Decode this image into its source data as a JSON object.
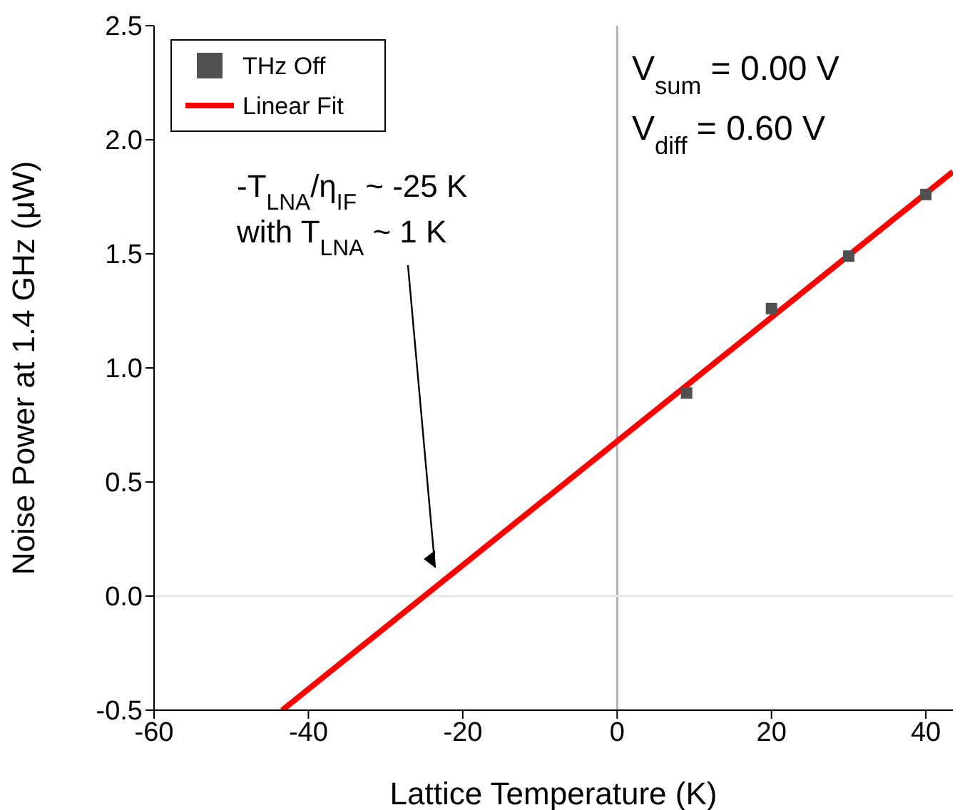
{
  "chart_data": {
    "type": "scatter",
    "xlabel": "Lattice Temperature (K)",
    "ylabel": "Noise Power at 1.4 GHz (μW)",
    "xlim": [
      -60,
      43.5
    ],
    "xticks": [
      -60,
      -40,
      -20,
      0,
      20,
      40
    ],
    "ylim": [
      -0.5,
      2.5
    ],
    "yticks": [
      {
        "value": -0.5,
        "label": "-0.5"
      },
      {
        "value": 0,
        "label": "0.0"
      },
      {
        "value": 0.5,
        "label": "0.5"
      },
      {
        "value": 1,
        "label": "1.0"
      },
      {
        "value": 1.5,
        "label": "1.5"
      },
      {
        "value": 2,
        "label": "2.0"
      },
      {
        "value": 2.5,
        "label": "2.5"
      }
    ],
    "series": [
      {
        "name": "THz Off",
        "marker": "square",
        "color": "#505050",
        "x": [
          9,
          20,
          30,
          40
        ],
        "values": [
          0.89,
          1.26,
          1.49,
          1.76
        ]
      },
      {
        "name": "Linear Fit",
        "type": "line",
        "marker": "none",
        "line_style": "solid",
        "color": "#ff0000",
        "x": [
          -43.4,
          43.5
        ],
        "values": [
          -0.5,
          1.86
        ]
      }
    ],
    "ref_lines": [
      {
        "axis": "x",
        "value": 0,
        "color": "#b0b0b0"
      },
      {
        "axis": "y",
        "value": 0,
        "color": "#e6e6e6"
      }
    ],
    "annotations": [
      "V$_{sum}$ = 0.00 V",
      "V$_{diff}$ = 0.60 V",
      "-T$_{LNA}$/η$_{IF}$ ~ -25 K",
      "with T$_{LNA}$ ~ 1 K"
    ],
    "legend": "top left",
    "grid": false
  }
}
